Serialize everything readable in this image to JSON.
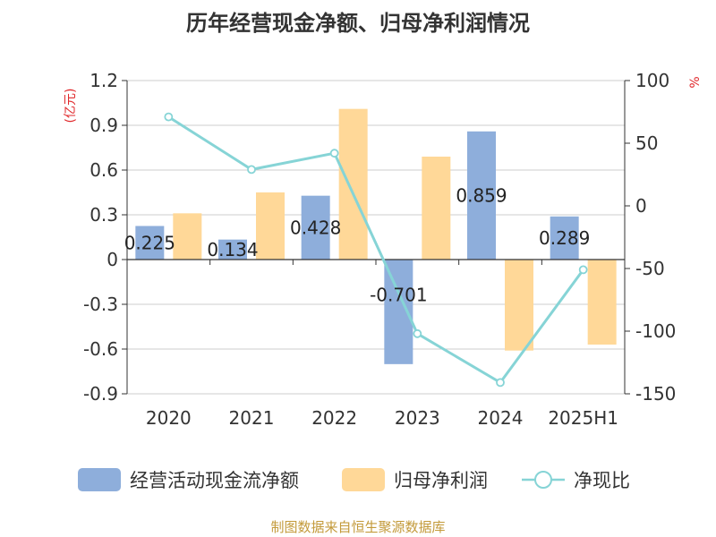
{
  "colors": {
    "operating_cash": "#8eaedb",
    "net_profit": "#ffd898",
    "ratio_line": "#86d4d6",
    "unit_text": "#e0292c",
    "source_text": "#c39a3a"
  },
  "legend": [
    {
      "key": "operating_cash",
      "label": "经营活动现金流净额",
      "shape": "bar"
    },
    {
      "key": "net_profit",
      "label": "归母净利润",
      "shape": "bar"
    },
    {
      "key": "ratio",
      "label": "净现比",
      "shape": "line"
    }
  ],
  "source": "制图数据来自恒生聚源数据库",
  "chart_data": {
    "type": "bar",
    "title": "历年经营现金净额、归母净利润情况",
    "categories": [
      "2020",
      "2021",
      "2022",
      "2023",
      "2024",
      "2025H1"
    ],
    "y_left": {
      "unit": "(亿元)",
      "ylim": [
        -0.9,
        1.2
      ],
      "ticks": [
        "1.2",
        "0.9",
        "0.6",
        "0.3",
        "0",
        "-0.3",
        "-0.6",
        "-0.9"
      ]
    },
    "y_right": {
      "unit": "%",
      "ylim": [
        -150,
        100
      ],
      "ticks": [
        "100",
        "50",
        "0",
        "-50",
        "-100",
        "-150"
      ]
    },
    "series": [
      {
        "name": "经营活动现金流净额",
        "type": "bar",
        "axis": "left",
        "values": [
          0.225,
          0.134,
          0.428,
          -0.701,
          0.859,
          0.289
        ],
        "labels": [
          "0.225",
          "0.134",
          "0.428",
          "-0.701",
          "0.859",
          "0.289"
        ]
      },
      {
        "name": "归母净利润",
        "type": "bar",
        "axis": "left",
        "values": [
          0.31,
          0.45,
          1.01,
          0.69,
          -0.61,
          -0.57
        ]
      },
      {
        "name": "净现比",
        "type": "line",
        "axis": "right",
        "values": [
          71,
          29,
          42,
          -102,
          -141,
          -51
        ]
      }
    ],
    "grid": true
  }
}
